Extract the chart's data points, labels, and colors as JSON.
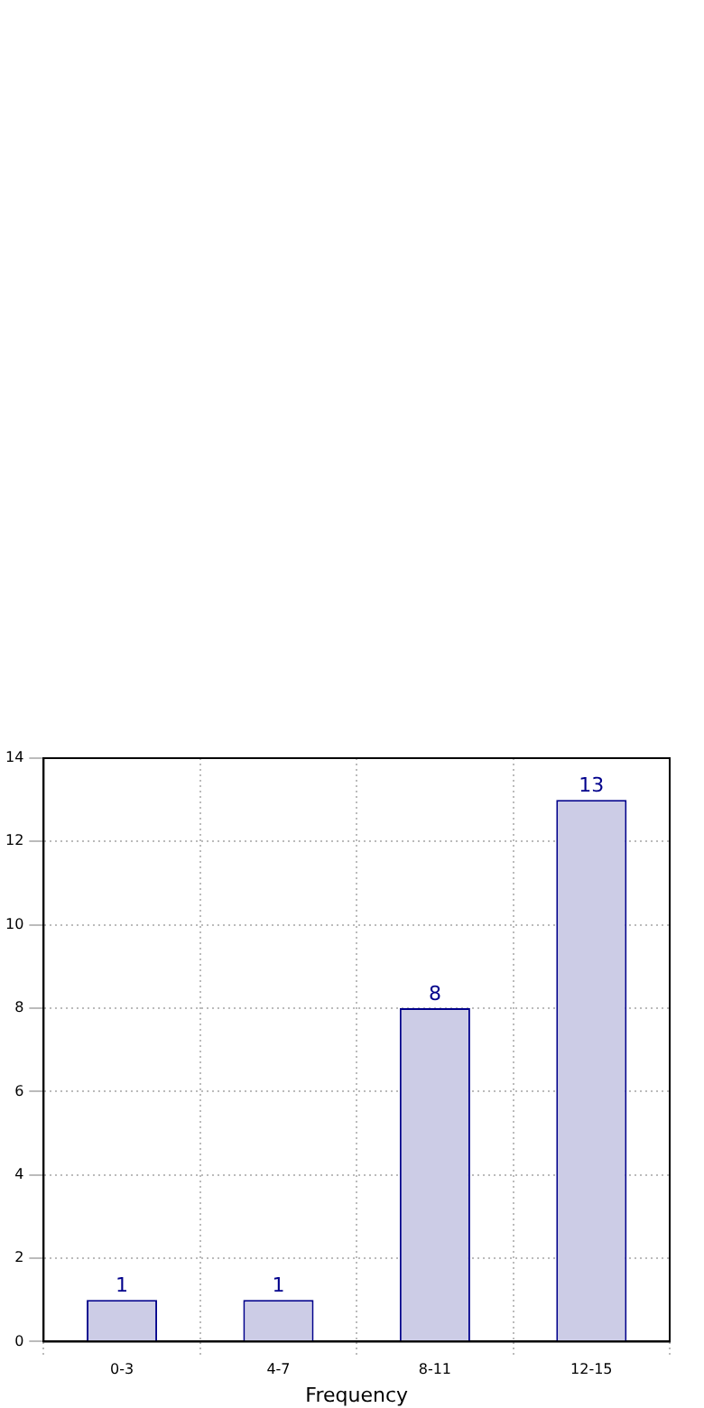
{
  "chart_data": {
    "type": "bar",
    "xlabel": "Frequency",
    "categories": [
      "0-3",
      "4-7",
      "8-11",
      "12-15"
    ],
    "series": [
      {
        "color": "#ccccE6",
        "values": [
          1,
          1,
          8,
          13
        ]
      }
    ],
    "ylim": [
      0,
      14
    ],
    "yticks": [
      0,
      2,
      4,
      6,
      8,
      10,
      12,
      14
    ],
    "grid": true,
    "data_labels": true,
    "legend": false
  }
}
